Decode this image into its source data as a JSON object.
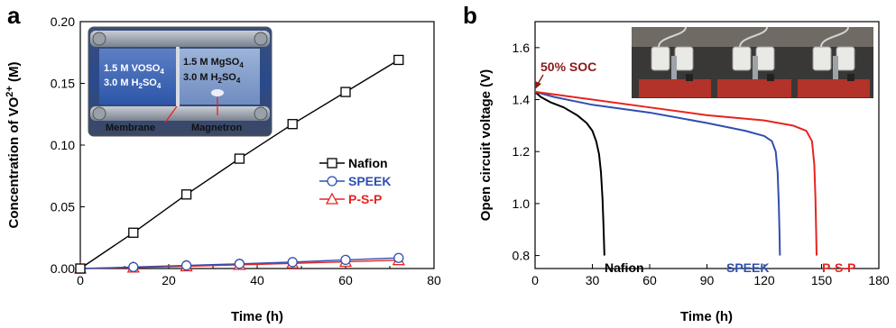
{
  "panels": {
    "a_letter": "a",
    "b_letter": "b"
  },
  "inset_a": {
    "left_line1": "1.5 M  VOSO",
    "left_line1_sub": "4",
    "left_line2": "3.0 M  H",
    "left_line2_sub": "2",
    "left_line2_tail": "SO",
    "left_line2_sub2": "4",
    "right_line1": "1.5 M  MgSO",
    "right_line1_sub": "4",
    "right_line2": "3.0 M  H",
    "right_line2_sub": "2",
    "right_line2_tail": "SO",
    "right_line2_sub2": "4",
    "label_membrane": "Membrane",
    "label_magnetron": "Magnetron"
  },
  "annotation_b": {
    "soc_label": "50% SOC"
  },
  "colors": {
    "nafion": "#000000",
    "speek": "#2f4fb0",
    "psp": "#e8231f",
    "soc": "#8b1a1a"
  },
  "chart_data": [
    {
      "type": "line",
      "panel": "a",
      "xlabel": "Time (h)",
      "ylabel_main": "Concentration of VO",
      "ylabel_sup": "2+",
      "ylabel_unit": " (M)",
      "xlim": [
        0,
        80
      ],
      "ylim": [
        0,
        0.2
      ],
      "xticks": [
        "0",
        "20",
        "40",
        "60",
        "80"
      ],
      "yticks": [
        "0.00",
        "0.05",
        "0.10",
        "0.15",
        "0.20"
      ],
      "legend_position": "right-middle",
      "markers": [
        "square",
        "circle",
        "triangle"
      ],
      "series": [
        {
          "name": "Nafion",
          "x": [
            0,
            12,
            24,
            36,
            48,
            60,
            72
          ],
          "y": [
            0.0,
            0.029,
            0.06,
            0.089,
            0.117,
            0.143,
            0.169
          ]
        },
        {
          "name": "SPEEK",
          "x": [
            0,
            12,
            24,
            36,
            48,
            60,
            72
          ],
          "y": [
            0.0,
            0.0012,
            0.0025,
            0.0038,
            0.0052,
            0.007,
            0.0086
          ]
        },
        {
          "name": "P-S-P",
          "x": [
            0,
            12,
            24,
            36,
            48,
            60,
            72
          ],
          "y": [
            0.0,
            0.0008,
            0.0018,
            0.003,
            0.0042,
            0.0055,
            0.0068
          ]
        }
      ]
    },
    {
      "type": "line",
      "panel": "b",
      "xlabel": "Time (h)",
      "ylabel": "Open circuit voltage (V)",
      "xlim": [
        0,
        180
      ],
      "ylim": [
        0.75,
        1.7
      ],
      "xticks": [
        "0",
        "30",
        "60",
        "90",
        "120",
        "150",
        "180"
      ],
      "yticks": [
        "0.8",
        "1.0",
        "1.2",
        "1.4",
        "1.6"
      ],
      "series": [
        {
          "name": "Nafion",
          "x": [
            0,
            3,
            8,
            15,
            22,
            27,
            30,
            32,
            33.5,
            34.5,
            35.3,
            35.8,
            36.1,
            36.3
          ],
          "y": [
            1.43,
            1.41,
            1.39,
            1.37,
            1.34,
            1.31,
            1.28,
            1.24,
            1.19,
            1.12,
            1.02,
            0.92,
            0.85,
            0.8
          ]
        },
        {
          "name": "SPEEK",
          "x": [
            0,
            10,
            30,
            60,
            90,
            110,
            120,
            124,
            126,
            127,
            127.6,
            128,
            128.2
          ],
          "y": [
            1.43,
            1.41,
            1.38,
            1.35,
            1.31,
            1.28,
            1.26,
            1.24,
            1.2,
            1.12,
            1.0,
            0.88,
            0.8
          ]
        },
        {
          "name": "P-S-P",
          "x": [
            0,
            10,
            30,
            60,
            90,
            120,
            135,
            142,
            145,
            146.2,
            146.8,
            147.2,
            147.4
          ],
          "y": [
            1.43,
            1.42,
            1.4,
            1.37,
            1.34,
            1.32,
            1.3,
            1.28,
            1.24,
            1.15,
            1.02,
            0.88,
            0.8
          ]
        }
      ]
    }
  ]
}
